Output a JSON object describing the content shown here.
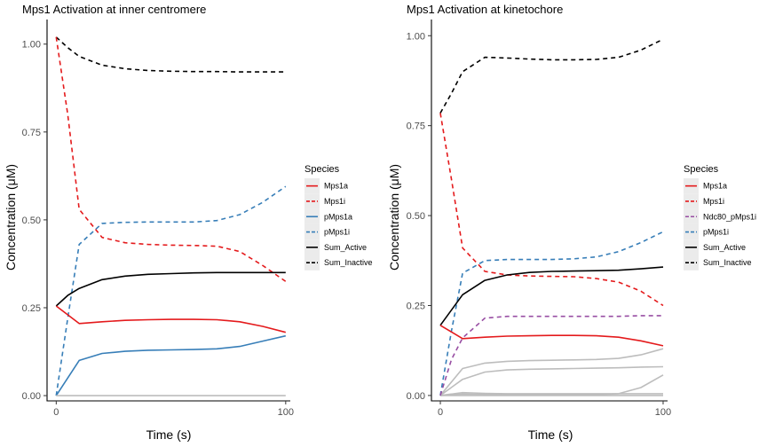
{
  "chart_data": [
    {
      "type": "line",
      "title": "Mps1 Activation at inner centromere",
      "xlabel": "Time (s)",
      "ylabel": "Concentration (μM)",
      "xlim": [
        -4,
        102
      ],
      "ylim": [
        -0.015,
        1.07
      ],
      "x_ticks": [
        0,
        100
      ],
      "y_ticks": [
        0.0,
        0.25,
        0.5,
        0.75,
        1.0
      ],
      "y_tick_labels": [
        "0.00",
        "0.25",
        "0.50",
        "0.75",
        "1.00"
      ],
      "grid": false,
      "legend": {
        "title": "Species",
        "position": "right",
        "entries": [
          {
            "label": "Mps1a",
            "color": "#e41a1c",
            "dash": "solid"
          },
          {
            "label": "Mps1i",
            "color": "#e41a1c",
            "dash": "dashed"
          },
          {
            "label": "pMps1a",
            "color": "#377eb8",
            "dash": "solid"
          },
          {
            "label": "pMps1i",
            "color": "#377eb8",
            "dash": "dashed"
          },
          {
            "label": "Sum_Active",
            "color": "#000000",
            "dash": "solid"
          },
          {
            "label": "Sum_Inactive",
            "color": "#000000",
            "dash": "dashed"
          }
        ]
      },
      "series": [
        {
          "name": "Sum_Inactive",
          "color": "#000000",
          "dash": "dashed",
          "x": [
            0,
            5,
            10,
            20,
            30,
            40,
            50,
            60,
            70,
            80,
            90,
            100
          ],
          "y": [
            1.02,
            0.99,
            0.965,
            0.94,
            0.93,
            0.925,
            0.923,
            0.922,
            0.922,
            0.921,
            0.921,
            0.921
          ]
        },
        {
          "name": "Mps1i",
          "color": "#e41a1c",
          "dash": "dashed",
          "x": [
            0,
            5,
            10,
            20,
            30,
            40,
            50,
            60,
            70,
            80,
            90,
            100
          ],
          "y": [
            1.02,
            0.8,
            0.53,
            0.45,
            0.435,
            0.43,
            0.428,
            0.427,
            0.425,
            0.41,
            0.37,
            0.325
          ]
        },
        {
          "name": "pMps1i",
          "color": "#377eb8",
          "dash": "dashed",
          "x": [
            0,
            5,
            10,
            20,
            30,
            40,
            50,
            60,
            70,
            80,
            90,
            100
          ],
          "y": [
            0.0,
            0.22,
            0.43,
            0.49,
            0.493,
            0.494,
            0.494,
            0.494,
            0.498,
            0.515,
            0.55,
            0.595
          ]
        },
        {
          "name": "Sum_Active",
          "color": "#000000",
          "dash": "solid",
          "x": [
            0,
            5,
            10,
            20,
            30,
            40,
            50,
            60,
            70,
            80,
            90,
            100
          ],
          "y": [
            0.255,
            0.285,
            0.305,
            0.33,
            0.34,
            0.345,
            0.347,
            0.349,
            0.35,
            0.35,
            0.35,
            0.35
          ]
        },
        {
          "name": "Mps1a",
          "color": "#e41a1c",
          "dash": "solid",
          "x": [
            0,
            10,
            20,
            30,
            40,
            50,
            60,
            70,
            80,
            90,
            100
          ],
          "y": [
            0.255,
            0.205,
            0.21,
            0.214,
            0.216,
            0.217,
            0.217,
            0.216,
            0.21,
            0.197,
            0.18
          ]
        },
        {
          "name": "pMps1a",
          "color": "#377eb8",
          "dash": "solid",
          "x": [
            0,
            5,
            10,
            20,
            30,
            40,
            50,
            60,
            70,
            80,
            90,
            100
          ],
          "y": [
            0.0,
            0.05,
            0.1,
            0.12,
            0.126,
            0.129,
            0.13,
            0.131,
            0.133,
            0.14,
            0.155,
            0.17
          ]
        },
        {
          "name": "",
          "color": "#bdbdbd",
          "dash": "solid",
          "x": [
            0,
            100
          ],
          "y": [
            0.0,
            0.0
          ]
        }
      ]
    },
    {
      "type": "line",
      "title": "Mps1 Activation at kinetochore",
      "xlabel": "Time (s)",
      "ylabel": "Concentration (μM)",
      "xlim": [
        -4,
        102
      ],
      "ylim": [
        -0.015,
        1.045
      ],
      "x_ticks": [
        0,
        100
      ],
      "y_ticks": [
        0.0,
        0.25,
        0.5,
        0.75,
        1.0
      ],
      "y_tick_labels": [
        "0.00",
        "0.25",
        "0.50",
        "0.75",
        "1.00"
      ],
      "grid": false,
      "legend": {
        "title": "Species",
        "position": "right",
        "entries": [
          {
            "label": "Mps1a",
            "color": "#e41a1c",
            "dash": "solid"
          },
          {
            "label": "Mps1i",
            "color": "#e41a1c",
            "dash": "dashed"
          },
          {
            "label": "Ndc80_pMps1i",
            "color": "#984ea3",
            "dash": "dashed"
          },
          {
            "label": "pMps1i",
            "color": "#377eb8",
            "dash": "dashed"
          },
          {
            "label": "Sum_Active",
            "color": "#000000",
            "dash": "solid"
          },
          {
            "label": "Sum_Inactive",
            "color": "#000000",
            "dash": "dashed"
          }
        ]
      },
      "series": [
        {
          "name": "",
          "color": "#bdbdbd",
          "dash": "solid",
          "x": [
            0,
            10,
            20,
            30,
            40,
            50,
            60,
            70,
            80,
            90,
            100
          ],
          "y": [
            0.0,
            0.075,
            0.09,
            0.095,
            0.097,
            0.098,
            0.099,
            0.1,
            0.103,
            0.113,
            0.13
          ]
        },
        {
          "name": "",
          "color": "#bdbdbd",
          "dash": "solid",
          "x": [
            0,
            10,
            20,
            30,
            40,
            50,
            60,
            70,
            80,
            90,
            100
          ],
          "y": [
            0.0,
            0.045,
            0.065,
            0.071,
            0.073,
            0.074,
            0.075,
            0.076,
            0.077,
            0.079,
            0.08
          ]
        },
        {
          "name": "",
          "color": "#bdbdbd",
          "dash": "solid",
          "x": [
            0,
            10,
            20,
            30,
            40,
            50,
            60,
            70,
            80,
            90,
            100
          ],
          "y": [
            0.0,
            0.008,
            0.006,
            0.005,
            0.005,
            0.005,
            0.005,
            0.005,
            0.005,
            0.005,
            0.005
          ]
        },
        {
          "name": "",
          "color": "#bdbdbd",
          "dash": "solid",
          "x": [
            0,
            10,
            20,
            30,
            40,
            50,
            60,
            70,
            80,
            90,
            100
          ],
          "y": [
            0.0,
            0.004,
            0.003,
            0.002,
            0.002,
            0.002,
            0.002,
            0.002,
            0.005,
            0.022,
            0.057
          ]
        },
        {
          "name": "",
          "color": "#bdbdbd",
          "dash": "solid",
          "x": [
            0,
            100
          ],
          "y": [
            0.0,
            0.0
          ]
        },
        {
          "name": "Sum_Inactive",
          "color": "#000000",
          "dash": "dashed",
          "x": [
            0,
            5,
            10,
            20,
            30,
            40,
            50,
            60,
            70,
            80,
            90,
            100
          ],
          "y": [
            0.785,
            0.84,
            0.9,
            0.94,
            0.938,
            0.935,
            0.933,
            0.933,
            0.934,
            0.94,
            0.96,
            0.99
          ]
        },
        {
          "name": "Mps1i",
          "color": "#e41a1c",
          "dash": "dashed",
          "x": [
            0,
            5,
            10,
            20,
            30,
            40,
            50,
            60,
            70,
            80,
            90,
            100
          ],
          "y": [
            0.785,
            0.6,
            0.41,
            0.345,
            0.335,
            0.332,
            0.331,
            0.33,
            0.325,
            0.315,
            0.29,
            0.25
          ]
        },
        {
          "name": "pMps1i",
          "color": "#377eb8",
          "dash": "dashed",
          "x": [
            0,
            5,
            10,
            20,
            30,
            40,
            50,
            60,
            70,
            80,
            90,
            100
          ],
          "y": [
            0.0,
            0.18,
            0.34,
            0.375,
            0.378,
            0.378,
            0.378,
            0.38,
            0.385,
            0.4,
            0.425,
            0.455
          ]
        },
        {
          "name": "Ndc80_pMps1i",
          "color": "#984ea3",
          "dash": "dashed",
          "x": [
            0,
            5,
            10,
            20,
            30,
            40,
            50,
            60,
            70,
            80,
            90,
            100
          ],
          "y": [
            0.0,
            0.1,
            0.16,
            0.215,
            0.22,
            0.22,
            0.22,
            0.22,
            0.22,
            0.22,
            0.222,
            0.222
          ]
        },
        {
          "name": "Sum_Active",
          "color": "#000000",
          "dash": "solid",
          "x": [
            0,
            10,
            20,
            30,
            40,
            50,
            60,
            70,
            80,
            90,
            100
          ],
          "y": [
            0.195,
            0.28,
            0.32,
            0.335,
            0.342,
            0.345,
            0.346,
            0.347,
            0.348,
            0.352,
            0.357
          ]
        },
        {
          "name": "Mps1a",
          "color": "#e41a1c",
          "dash": "solid",
          "x": [
            0,
            10,
            20,
            30,
            40,
            50,
            60,
            70,
            80,
            90,
            100
          ],
          "y": [
            0.195,
            0.158,
            0.162,
            0.165,
            0.166,
            0.167,
            0.167,
            0.166,
            0.162,
            0.152,
            0.138
          ]
        }
      ]
    }
  ]
}
